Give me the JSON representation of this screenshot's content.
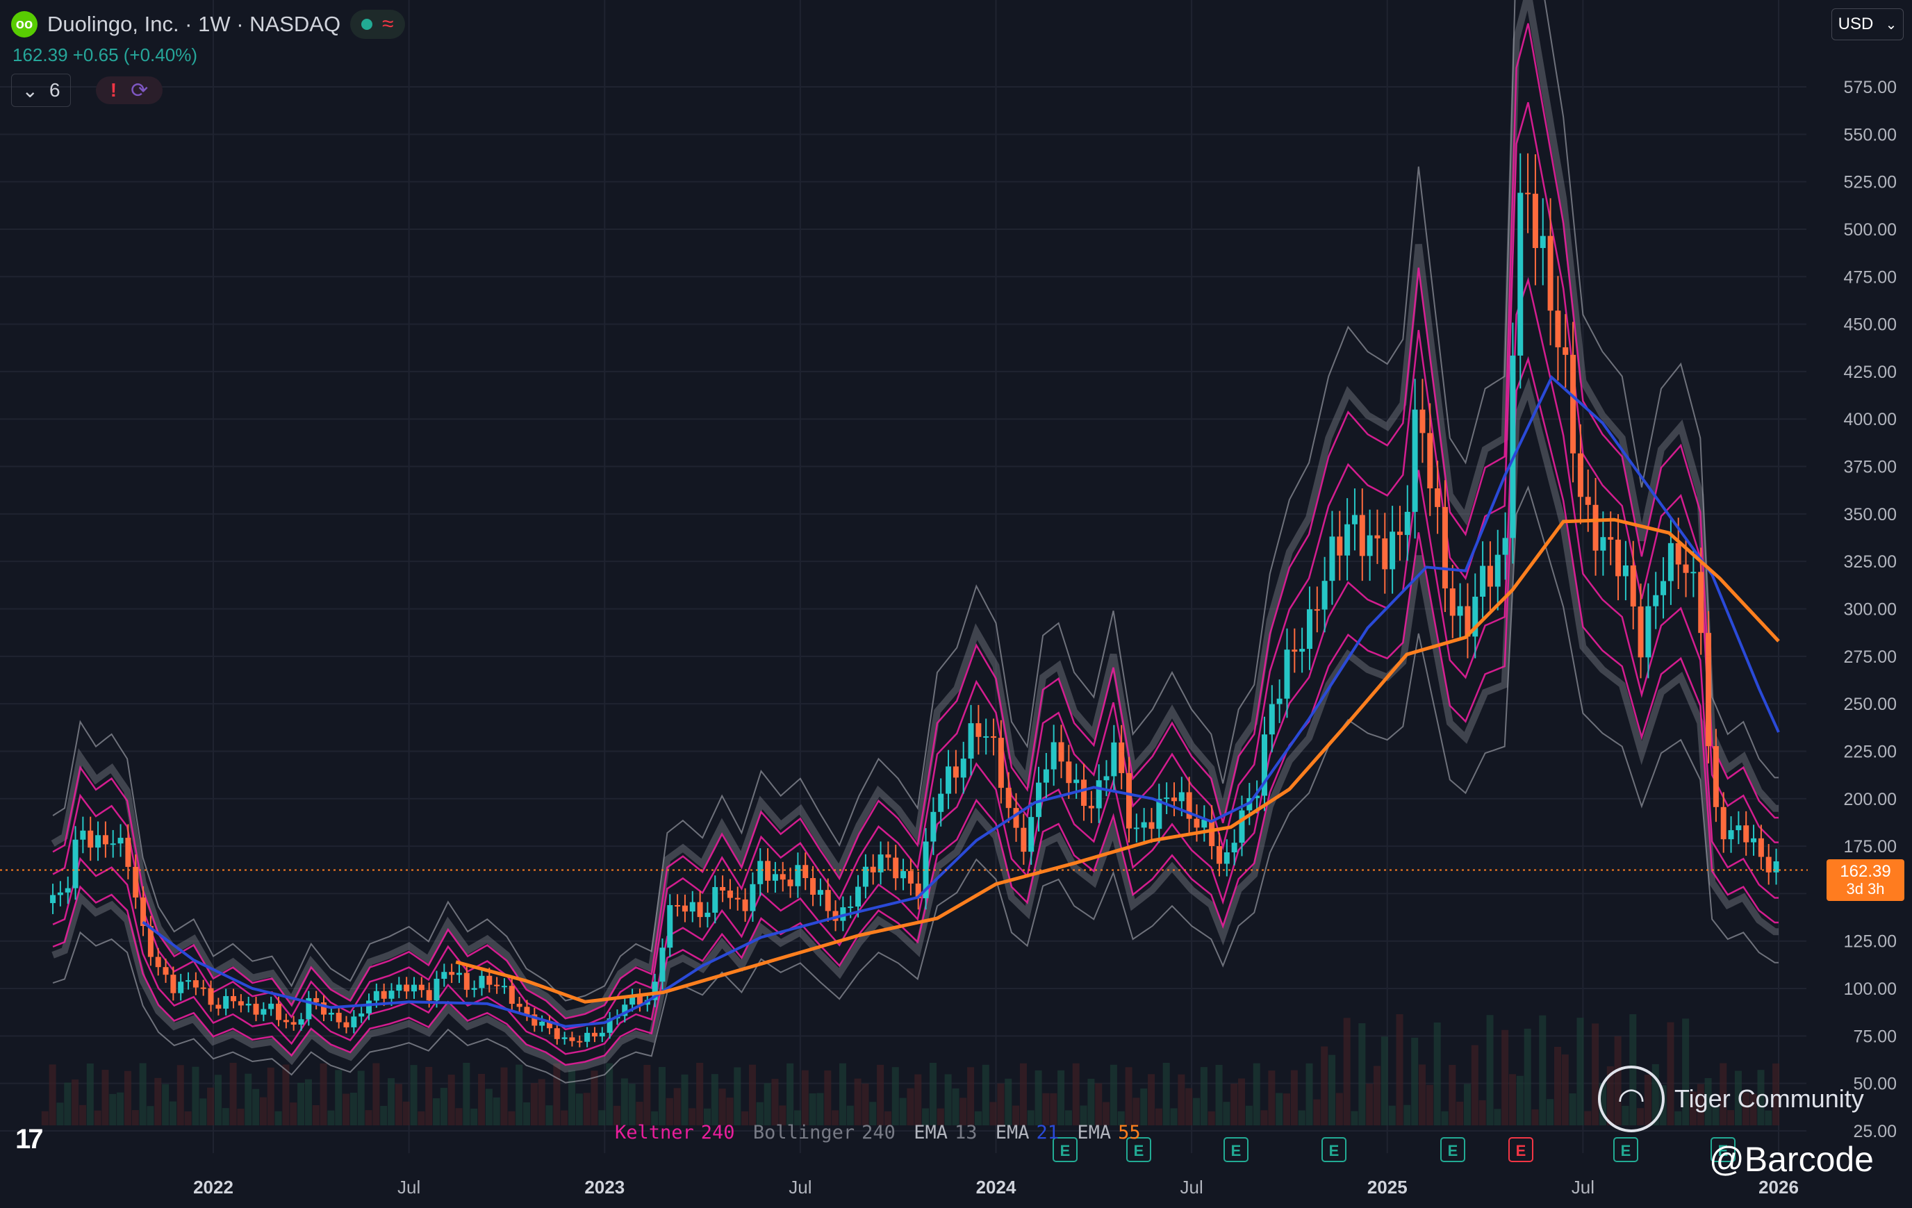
{
  "header": {
    "title": "Duolingo, Inc. · 1W · NASDAQ",
    "logo_text": "oo",
    "quote": "162.39 +0.65 (+0.40%)",
    "indicator_count": "6",
    "currency": "USD"
  },
  "price_label": {
    "price": "162.39",
    "countdown": "3d 3h"
  },
  "legend": [
    {
      "text": "Keltner",
      "color": "#e91e9b"
    },
    {
      "text": "240",
      "color": "#e91e9b"
    },
    {
      "text": "Bollinger",
      "color": "#787b86"
    },
    {
      "text": "240",
      "color": "#787b86"
    },
    {
      "text": "EMA",
      "color": "#b2b5be"
    },
    {
      "text": "13",
      "color": "#787b86"
    },
    {
      "text": "EMA",
      "color": "#b2b5be"
    },
    {
      "text": "21",
      "color": "#2a4ad8"
    },
    {
      "text": "EMA",
      "color": "#b2b5be"
    },
    {
      "text": "55",
      "color": "#ff7f1e"
    }
  ],
  "watermark": {
    "brand": "Tiger Community",
    "handle": "@Barcode"
  },
  "colors": {
    "background": "#131722",
    "up": "#26c6c6",
    "down": "#ff6b3d",
    "keltner": "#e91e9b",
    "bollinger": "#9598a1",
    "ema21": "#2a4ad8",
    "ema55": "#ff7f1e",
    "last_price": "#ff7c1f"
  },
  "chart_data": {
    "type": "candlestick",
    "timeframe": "1W",
    "currency": "USD",
    "ylim": [
      25,
      600
    ],
    "y_ticks": [
      25,
      50,
      75,
      100,
      125,
      150,
      175,
      200,
      225,
      250,
      275,
      300,
      325,
      350,
      375,
      400,
      425,
      450,
      475,
      500,
      525,
      550,
      575
    ],
    "x_ticks": [
      {
        "label": "2022",
        "t": 2022.0
      },
      {
        "label": "Jul",
        "t": 2022.5
      },
      {
        "label": "2023",
        "t": 2023.0
      },
      {
        "label": "Jul",
        "t": 2023.5
      },
      {
        "label": "2024",
        "t": 2024.0
      },
      {
        "label": "Jul",
        "t": 2024.5
      },
      {
        "label": "2025",
        "t": 2025.0
      },
      {
        "label": "Jul",
        "t": 2025.5
      },
      {
        "label": "2026",
        "t": 2026.0
      }
    ],
    "x_range": [
      2021.57,
      2026.18
    ],
    "last_price": 162.39,
    "close_series": [
      [
        2021.57,
        145
      ],
      [
        2021.62,
        150
      ],
      [
        2021.66,
        185
      ],
      [
        2021.7,
        175
      ],
      [
        2021.74,
        180
      ],
      [
        2021.78,
        170
      ],
      [
        2021.82,
        130
      ],
      [
        2021.86,
        110
      ],
      [
        2021.9,
        100
      ],
      [
        2021.95,
        105
      ],
      [
        2022.0,
        90
      ],
      [
        2022.05,
        95
      ],
      [
        2022.1,
        88
      ],
      [
        2022.15,
        90
      ],
      [
        2022.2,
        78
      ],
      [
        2022.25,
        95
      ],
      [
        2022.3,
        85
      ],
      [
        2022.35,
        80
      ],
      [
        2022.4,
        95
      ],
      [
        2022.45,
        98
      ],
      [
        2022.5,
        102
      ],
      [
        2022.55,
        96
      ],
      [
        2022.6,
        112
      ],
      [
        2022.65,
        100
      ],
      [
        2022.7,
        105
      ],
      [
        2022.75,
        98
      ],
      [
        2022.8,
        85
      ],
      [
        2022.85,
        80
      ],
      [
        2022.9,
        72
      ],
      [
        2022.95,
        74
      ],
      [
        2023.0,
        78
      ],
      [
        2023.04,
        90
      ],
      [
        2023.08,
        95
      ],
      [
        2023.12,
        92
      ],
      [
        2023.16,
        140
      ],
      [
        2023.2,
        145
      ],
      [
        2023.25,
        138
      ],
      [
        2023.3,
        155
      ],
      [
        2023.35,
        140
      ],
      [
        2023.4,
        165
      ],
      [
        2023.45,
        155
      ],
      [
        2023.5,
        162
      ],
      [
        2023.55,
        148
      ],
      [
        2023.6,
        135
      ],
      [
        2023.65,
        155
      ],
      [
        2023.7,
        170
      ],
      [
        2023.75,
        162
      ],
      [
        2023.8,
        150
      ],
      [
        2023.85,
        205
      ],
      [
        2023.9,
        215
      ],
      [
        2023.95,
        240
      ],
      [
        2024.0,
        225
      ],
      [
        2024.04,
        185
      ],
      [
        2024.08,
        175
      ],
      [
        2024.12,
        220
      ],
      [
        2024.16,
        225
      ],
      [
        2024.2,
        205
      ],
      [
        2024.25,
        195
      ],
      [
        2024.3,
        230
      ],
      [
        2024.35,
        180
      ],
      [
        2024.4,
        190
      ],
      [
        2024.45,
        205
      ],
      [
        2024.5,
        190
      ],
      [
        2024.55,
        180
      ],
      [
        2024.58,
        160
      ],
      [
        2024.62,
        190
      ],
      [
        2024.66,
        200
      ],
      [
        2024.7,
        245
      ],
      [
        2024.75,
        275
      ],
      [
        2024.8,
        290
      ],
      [
        2024.85,
        325
      ],
      [
        2024.9,
        345
      ],
      [
        2024.95,
        335
      ],
      [
        2025.0,
        330
      ],
      [
        2025.04,
        340
      ],
      [
        2025.08,
        410
      ],
      [
        2025.12,
        355
      ],
      [
        2025.16,
        300
      ],
      [
        2025.2,
        290
      ],
      [
        2025.25,
        320
      ],
      [
        2025.3,
        325
      ],
      [
        2025.33,
        500
      ],
      [
        2025.36,
        520
      ],
      [
        2025.4,
        480
      ],
      [
        2025.45,
        430
      ],
      [
        2025.5,
        350
      ],
      [
        2025.55,
        335
      ],
      [
        2025.6,
        325
      ],
      [
        2025.65,
        280
      ],
      [
        2025.7,
        320
      ],
      [
        2025.75,
        330
      ],
      [
        2025.8,
        300
      ],
      [
        2025.83,
        195
      ],
      [
        2025.87,
        180
      ],
      [
        2025.91,
        185
      ],
      [
        2025.95,
        170
      ],
      [
        2025.99,
        162.39
      ]
    ],
    "ema21_series": [
      [
        2021.82,
        135
      ],
      [
        2021.95,
        115
      ],
      [
        2022.1,
        100
      ],
      [
        2022.3,
        90
      ],
      [
        2022.5,
        93
      ],
      [
        2022.7,
        92
      ],
      [
        2022.9,
        80
      ],
      [
        2023.0,
        82
      ],
      [
        2023.1,
        92
      ],
      [
        2023.25,
        112
      ],
      [
        2023.4,
        127
      ],
      [
        2023.6,
        138
      ],
      [
        2023.8,
        148
      ],
      [
        2023.95,
        178
      ],
      [
        2024.1,
        198
      ],
      [
        2024.25,
        206
      ],
      [
        2024.4,
        200
      ],
      [
        2024.55,
        188
      ],
      [
        2024.65,
        198
      ],
      [
        2024.8,
        242
      ],
      [
        2024.95,
        290
      ],
      [
        2025.1,
        322
      ],
      [
        2025.2,
        320
      ],
      [
        2025.3,
        370
      ],
      [
        2025.42,
        422
      ],
      [
        2025.55,
        398
      ],
      [
        2025.7,
        355
      ],
      [
        2025.83,
        318
      ],
      [
        2025.95,
        258
      ],
      [
        2026.0,
        235
      ]
    ],
    "ema55_series": [
      [
        2022.62,
        114
      ],
      [
        2022.8,
        104
      ],
      [
        2022.95,
        93
      ],
      [
        2023.15,
        98
      ],
      [
        2023.4,
        113
      ],
      [
        2023.65,
        128
      ],
      [
        2023.85,
        137
      ],
      [
        2024.0,
        155
      ],
      [
        2024.2,
        166
      ],
      [
        2024.4,
        178
      ],
      [
        2024.6,
        185
      ],
      [
        2024.75,
        205
      ],
      [
        2024.9,
        240
      ],
      [
        2025.05,
        276
      ],
      [
        2025.2,
        285
      ],
      [
        2025.32,
        310
      ],
      [
        2025.45,
        346
      ],
      [
        2025.58,
        347
      ],
      [
        2025.72,
        340
      ],
      [
        2025.85,
        316
      ],
      [
        2026.0,
        283
      ]
    ]
  }
}
